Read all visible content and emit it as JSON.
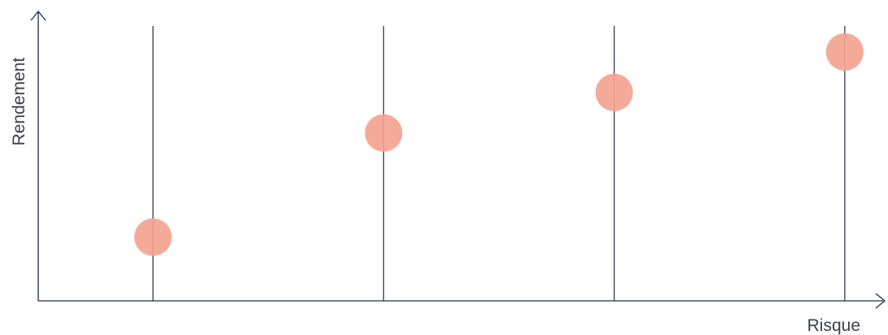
{
  "chart_data": {
    "type": "scatter",
    "xlabel": "Risque",
    "ylabel": "Rendement",
    "ylim": [
      0,
      10
    ],
    "grid": "vertical lines through each point",
    "points": [
      {
        "x": 1,
        "y": 2.2
      },
      {
        "x": 2,
        "y": 5.8
      },
      {
        "x": 3,
        "y": 7.2
      },
      {
        "x": 4,
        "y": 8.6
      }
    ]
  },
  "colors": {
    "axis": "#1f2a4d",
    "point": "#f4a390",
    "text": "#3a3f4b"
  }
}
